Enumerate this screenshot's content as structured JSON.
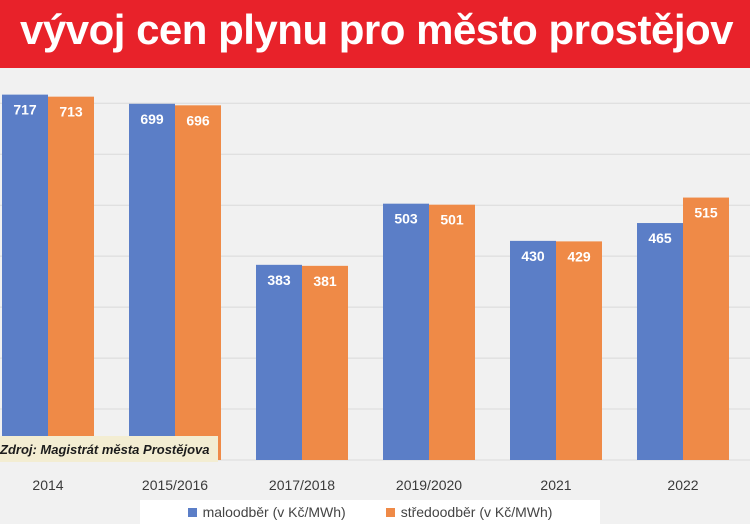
{
  "title": "vývoj cen plynu pro město prostějov",
  "source": "Zdroj: Magistrát města Prostějova",
  "colors": {
    "title_bg": "#e8222a",
    "series_1": "#5b7ec7",
    "series_2": "#ef8a47"
  },
  "chart_data": {
    "type": "bar",
    "categories": [
      "2014",
      "2015/2016",
      "2017/2018",
      "2019/2020",
      "2021",
      "2022"
    ],
    "series": [
      {
        "name": "maloodběr (v Kč/MWh)",
        "values": [
          717,
          699,
          383,
          503,
          430,
          465
        ]
      },
      {
        "name": "středoodběr (v Kč/MWh)",
        "values": [
          713,
          696,
          381,
          501,
          429,
          515
        ]
      }
    ],
    "ylim": [
      0,
      730
    ],
    "grid": true,
    "legend": "bottom"
  }
}
